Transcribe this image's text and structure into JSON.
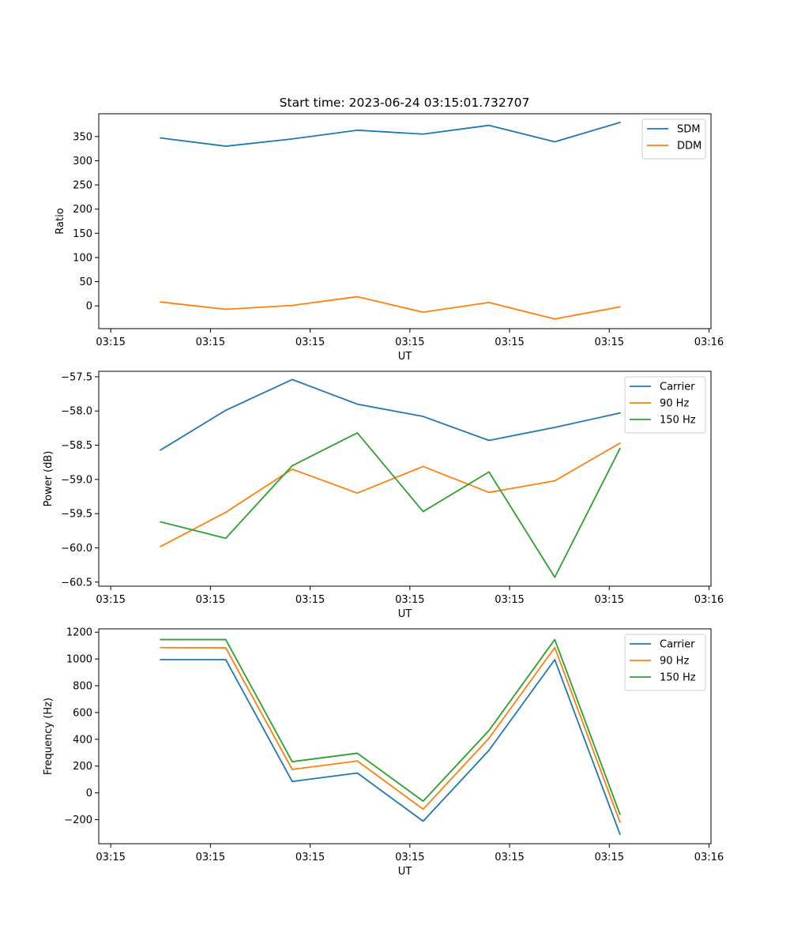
{
  "figure_title": "Start time: 2023-06-24 03:15:01.732707",
  "colors": {
    "blue": "#1f77b4",
    "orange": "#ff7f0e",
    "green": "#2ca02c"
  },
  "chart_data": [
    {
      "type": "line",
      "title": "Start time: 2023-06-24 03:15:01.732707",
      "xlabel": "UT",
      "ylabel": "Ratio",
      "x_tick_labels": [
        "03:15",
        "03:15",
        "03:15",
        "03:15",
        "03:15",
        "03:15",
        "03:16"
      ],
      "x_tick_values": [
        0.0,
        1.5,
        3.0,
        4.5,
        6.0,
        7.5,
        9.0
      ],
      "xlim": [
        -0.18,
        9.03
      ],
      "x": [
        0.75,
        1.73,
        2.73,
        3.71,
        4.7,
        5.69,
        6.68,
        7.66
      ],
      "ylim": [
        -47,
        397
      ],
      "y_tick_values": [
        0,
        50,
        100,
        150,
        200,
        250,
        300,
        350
      ],
      "y_tick_labels": [
        "0",
        "50",
        "100",
        "150",
        "200",
        "250",
        "300",
        "350"
      ],
      "legend_position": "upper-right",
      "series": [
        {
          "name": "SDM",
          "color": "#1f77b4",
          "values": [
            347,
            330,
            345,
            363,
            355,
            373,
            339,
            379
          ]
        },
        {
          "name": "DDM",
          "color": "#ff7f0e",
          "values": [
            8,
            -7,
            1,
            19,
            -13,
            7,
            -27,
            -2
          ]
        }
      ]
    },
    {
      "type": "line",
      "xlabel": "UT",
      "ylabel": "Power (dB)",
      "x_tick_labels": [
        "03:15",
        "03:15",
        "03:15",
        "03:15",
        "03:15",
        "03:15",
        "03:16"
      ],
      "x_tick_values": [
        0.0,
        1.5,
        3.0,
        4.5,
        6.0,
        7.5,
        9.0
      ],
      "xlim": [
        -0.18,
        9.03
      ],
      "x": [
        0.75,
        1.73,
        2.73,
        3.71,
        4.7,
        5.69,
        6.68,
        7.66
      ],
      "ylim": [
        -60.56,
        -57.42
      ],
      "y_tick_values": [
        -60.5,
        -60.0,
        -59.5,
        -59.0,
        -58.5,
        -58.0,
        -57.5
      ],
      "y_tick_labels": [
        "−60.5",
        "−60.0",
        "−59.5",
        "−59.0",
        "−58.5",
        "−58.0",
        "−57.5"
      ],
      "legend_position": "upper-right",
      "series": [
        {
          "name": "Carrier",
          "color": "#1f77b4",
          "values": [
            -58.57,
            -57.99,
            -57.54,
            -57.9,
            -58.08,
            -58.43,
            -58.24,
            -58.03
          ]
        },
        {
          "name": "90 Hz",
          "color": "#ff7f0e",
          "values": [
            -59.98,
            -59.48,
            -58.85,
            -59.2,
            -58.81,
            -59.19,
            -59.02,
            -58.47
          ]
        },
        {
          "name": "150 Hz",
          "color": "#2ca02c",
          "values": [
            -59.62,
            -59.86,
            -58.8,
            -58.32,
            -59.47,
            -58.89,
            -60.43,
            -58.55
          ]
        }
      ]
    },
    {
      "type": "line",
      "xlabel": "UT",
      "ylabel": "Frequency (Hz)",
      "x_tick_labels": [
        "03:15",
        "03:15",
        "03:15",
        "03:15",
        "03:15",
        "03:15",
        "03:16"
      ],
      "x_tick_values": [
        0.0,
        1.5,
        3.0,
        4.5,
        6.0,
        7.5,
        9.0
      ],
      "xlim": [
        -0.18,
        9.03
      ],
      "x": [
        0.75,
        1.73,
        2.73,
        3.71,
        4.7,
        5.69,
        6.68,
        7.66
      ],
      "ylim": [
        -380,
        1225
      ],
      "y_tick_values": [
        -200,
        0,
        200,
        400,
        600,
        800,
        1000,
        1200
      ],
      "y_tick_labels": [
        "−200",
        "0",
        "200",
        "400",
        "600",
        "800",
        "1000",
        "1200"
      ],
      "legend_position": "upper-right",
      "series": [
        {
          "name": "Carrier",
          "color": "#1f77b4",
          "values": [
            995,
            995,
            85,
            148,
            -212,
            318,
            995,
            -308
          ]
        },
        {
          "name": "90 Hz",
          "color": "#ff7f0e",
          "values": [
            1085,
            1083,
            175,
            238,
            -122,
            408,
            1085,
            -218
          ]
        },
        {
          "name": "150 Hz",
          "color": "#2ca02c",
          "values": [
            1145,
            1145,
            233,
            296,
            -62,
            466,
            1145,
            -160
          ]
        }
      ]
    }
  ]
}
